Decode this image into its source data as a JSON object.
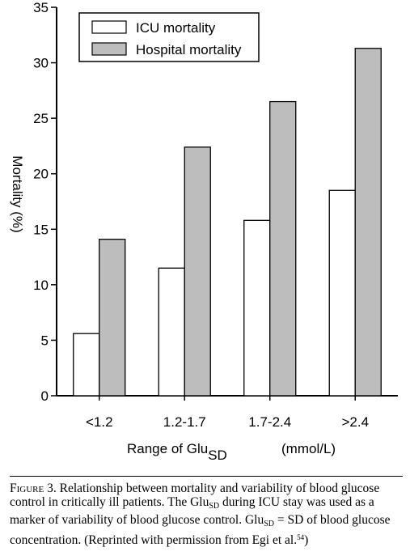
{
  "chart_data": {
    "type": "bar",
    "categories": [
      "<1.2",
      "1.2-1.7",
      "1.7-2.4",
      ">2.4"
    ],
    "series": [
      {
        "name": "ICU mortality",
        "values": [
          5.6,
          11.5,
          15.8,
          18.5
        ],
        "color": "#ffffff"
      },
      {
        "name": "Hospital mortality",
        "values": [
          14.1,
          22.4,
          26.5,
          31.3
        ],
        "color": "#bdbdbd"
      }
    ],
    "ylim": [
      0,
      35
    ],
    "yticks": [
      0,
      5,
      10,
      15,
      20,
      25,
      30,
      35
    ],
    "ylabel": "Mortality (%)",
    "xlabel_main": "Range of Glu",
    "xlabel_sub": "SD",
    "xlabel_unit": "(mmol/L)",
    "legend_position": "top-left",
    "grid": false
  },
  "caption": {
    "label": "Figure 3.",
    "text1": " Relationship between mortality and variability of blood glucose control in critically ill patients. The Glu",
    "sub1": "SD",
    "text2": " during ICU stay was used as a marker of variability of blood glucose control. Glu",
    "sub2": "SD",
    "text3": " = SD of blood glucose concentration. (Reprinted with permission from Egi et al.",
    "ref": "54",
    "text4": ")"
  }
}
